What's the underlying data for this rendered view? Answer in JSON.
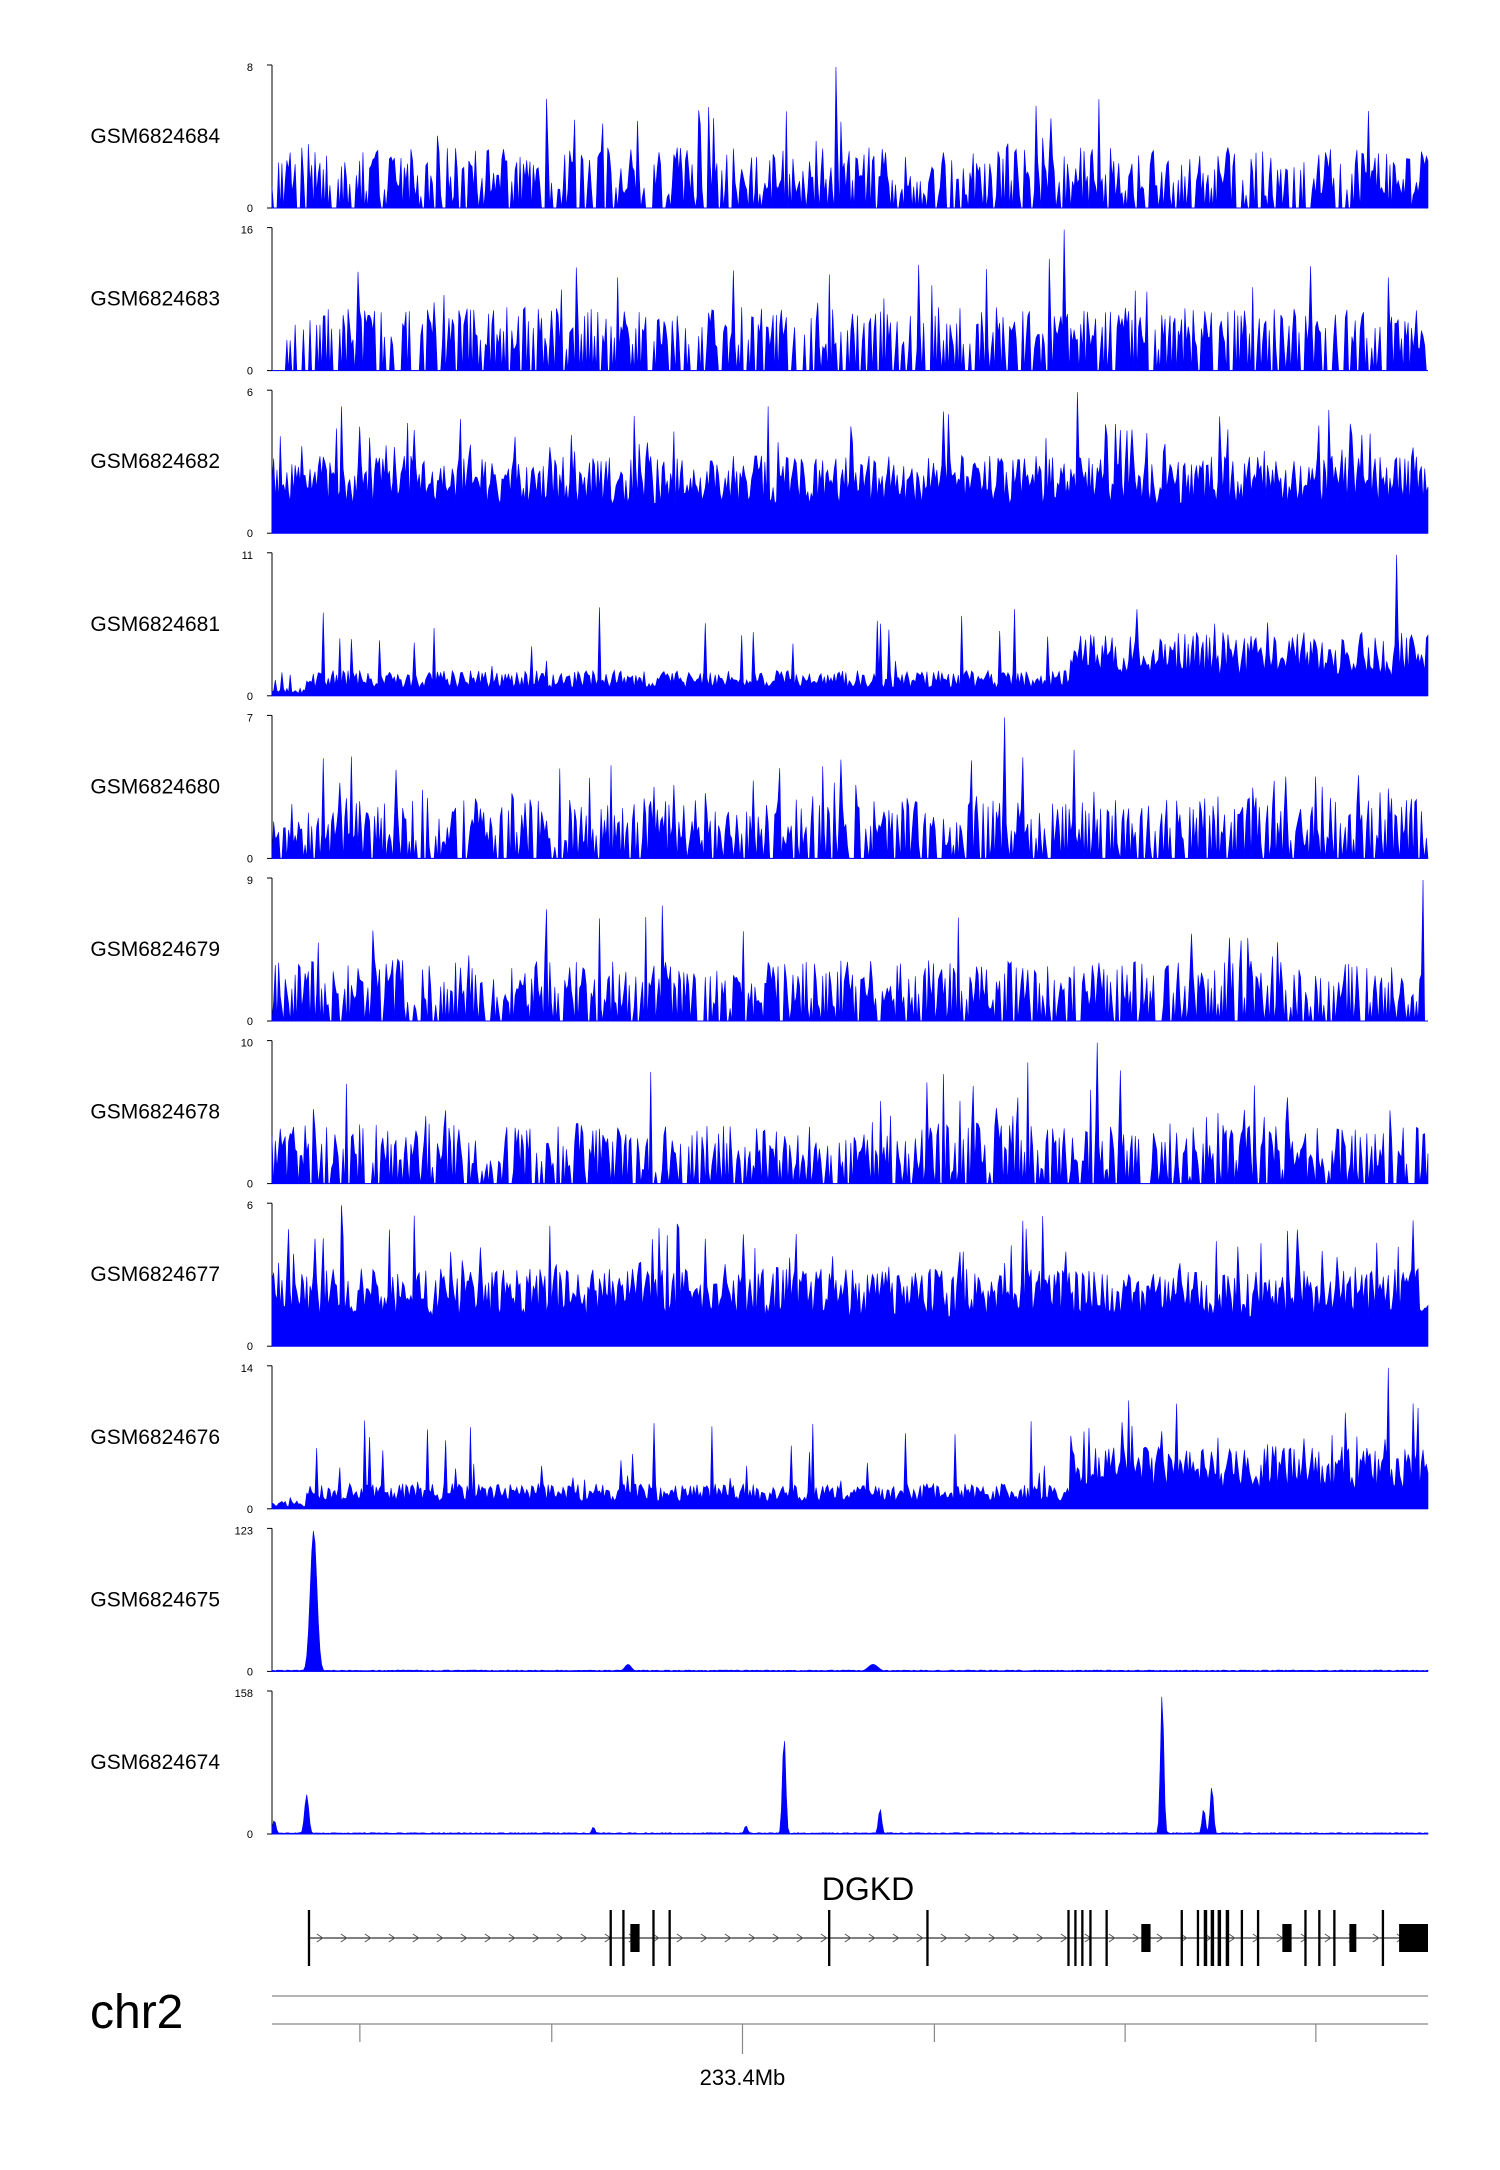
{
  "chart_data": {
    "type": "area",
    "title": "",
    "xlabel": "",
    "ylabel": "",
    "chromosome": "chr2",
    "x_tick_labels": [
      "233.4Mb"
    ],
    "series_color": "#0000ff",
    "grid": false,
    "legend": "none",
    "tracks": [
      {
        "name": "GSM6824684",
        "ymax": "8",
        "ymin": "0",
        "profile": "sparse",
        "peak_max": 8
      },
      {
        "name": "GSM6824683",
        "ymax": "16",
        "ymin": "0",
        "profile": "gapped",
        "peak_max": 16
      },
      {
        "name": "GSM6824682",
        "ymax": "6",
        "ymin": "0",
        "profile": "dense",
        "peak_max": 6
      },
      {
        "name": "GSM6824681",
        "ymax": "11",
        "ymin": "0",
        "profile": "broad",
        "peak_max": 11
      },
      {
        "name": "GSM6824680",
        "ymax": "7",
        "ymin": "0",
        "profile": "sparse",
        "peak_max": 7
      },
      {
        "name": "GSM6824679",
        "ymax": "9",
        "ymin": "0",
        "profile": "sparse",
        "peak_max": 9
      },
      {
        "name": "GSM6824678",
        "ymax": "10",
        "ymin": "0",
        "profile": "sparse",
        "peak_max": 10
      },
      {
        "name": "GSM6824677",
        "ymax": "6",
        "ymin": "0",
        "profile": "dense",
        "peak_max": 6
      },
      {
        "name": "GSM6824676",
        "ymax": "14",
        "ymin": "0",
        "profile": "broad",
        "peak_max": 14
      },
      {
        "name": "GSM6824675",
        "ymax": "123",
        "ymin": "0",
        "profile": "peaks",
        "peak_max": 123,
        "peaks": [
          {
            "x": 0.036,
            "h": 1.0,
            "w": 0.004
          },
          {
            "x": 0.308,
            "h": 0.05,
            "w": 0.004
          },
          {
            "x": 0.52,
            "h": 0.05,
            "w": 0.006
          }
        ]
      },
      {
        "name": "GSM6824674",
        "ymax": "158",
        "ymin": "0",
        "profile": "peaks",
        "peak_max": 158,
        "peaks": [
          {
            "x": 0.002,
            "h": 0.1,
            "w": 0.002
          },
          {
            "x": 0.03,
            "h": 0.28,
            "w": 0.0025
          },
          {
            "x": 0.278,
            "h": 0.05,
            "w": 0.002
          },
          {
            "x": 0.41,
            "h": 0.06,
            "w": 0.002
          },
          {
            "x": 0.443,
            "h": 0.7,
            "w": 0.002
          },
          {
            "x": 0.526,
            "h": 0.18,
            "w": 0.002
          },
          {
            "x": 0.77,
            "h": 1.0,
            "w": 0.002
          },
          {
            "x": 0.806,
            "h": 0.18,
            "w": 0.002
          },
          {
            "x": 0.813,
            "h": 0.34,
            "w": 0.002
          }
        ]
      }
    ],
    "gene": {
      "name": "DGKD",
      "strand": "+",
      "exons": [
        {
          "start": 0.031,
          "end": 0.033
        },
        {
          "start": 0.292,
          "end": 0.294
        },
        {
          "start": 0.303,
          "end": 0.305
        },
        {
          "start": 0.31,
          "end": 0.318
        },
        {
          "start": 0.329,
          "end": 0.331
        },
        {
          "start": 0.343,
          "end": 0.345
        },
        {
          "start": 0.481,
          "end": 0.483
        },
        {
          "start": 0.566,
          "end": 0.568
        },
        {
          "start": 0.688,
          "end": 0.69
        },
        {
          "start": 0.694,
          "end": 0.696
        },
        {
          "start": 0.7,
          "end": 0.702
        },
        {
          "start": 0.707,
          "end": 0.709
        },
        {
          "start": 0.721,
          "end": 0.723
        },
        {
          "start": 0.752,
          "end": 0.76
        },
        {
          "start": 0.786,
          "end": 0.788
        },
        {
          "start": 0.8,
          "end": 0.802
        },
        {
          "start": 0.806,
          "end": 0.809
        },
        {
          "start": 0.812,
          "end": 0.815
        },
        {
          "start": 0.818,
          "end": 0.821
        },
        {
          "start": 0.825,
          "end": 0.828
        },
        {
          "start": 0.838,
          "end": 0.84
        },
        {
          "start": 0.852,
          "end": 0.854
        },
        {
          "start": 0.874,
          "end": 0.882
        },
        {
          "start": 0.893,
          "end": 0.895
        },
        {
          "start": 0.905,
          "end": 0.907
        },
        {
          "start": 0.918,
          "end": 0.92
        },
        {
          "start": 0.932,
          "end": 0.938
        },
        {
          "start": 0.96,
          "end": 0.962
        },
        {
          "start": 0.975,
          "end": 1.0
        }
      ]
    },
    "x_ticks": [
      0.076,
      0.242,
      0.407,
      0.573,
      0.738,
      0.903
    ],
    "x_label_tick": 0.407
  }
}
